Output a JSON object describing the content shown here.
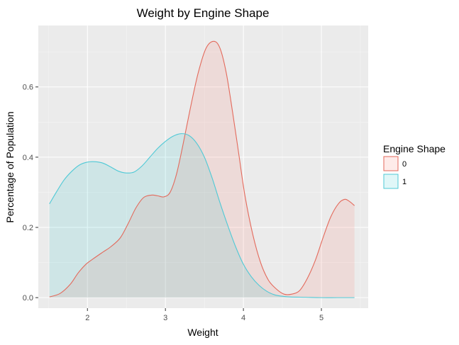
{
  "chart_data": {
    "type": "area",
    "title": "Weight by Engine Shape",
    "xlabel": "Weight",
    "ylabel": "Percentage of Population",
    "xlim": [
      1.37,
      5.6
    ],
    "ylim": [
      -0.03,
      0.775
    ],
    "x_ticks": [
      2,
      3,
      4,
      5
    ],
    "x_tick_labels": [
      "2",
      "3",
      "4",
      "5"
    ],
    "y_ticks": [
      0.0,
      0.2,
      0.4,
      0.6
    ],
    "y_tick_labels": [
      "0.0",
      "0.2",
      "0.4",
      "0.6"
    ],
    "grid": true,
    "legend": {
      "title": "Engine Shape",
      "position": "right"
    },
    "series": [
      {
        "name": "0",
        "color": "#E36A5C",
        "fill": "rgba(248,118,109,0.15)",
        "points": [
          [
            1.513,
            0.002
          ],
          [
            1.65,
            0.012
          ],
          [
            1.78,
            0.038
          ],
          [
            1.88,
            0.07
          ],
          [
            1.98,
            0.095
          ],
          [
            2.07,
            0.11
          ],
          [
            2.2,
            0.13
          ],
          [
            2.3,
            0.145
          ],
          [
            2.42,
            0.17
          ],
          [
            2.52,
            0.21
          ],
          [
            2.62,
            0.255
          ],
          [
            2.72,
            0.285
          ],
          [
            2.82,
            0.292
          ],
          [
            2.9,
            0.29
          ],
          [
            2.98,
            0.287
          ],
          [
            3.06,
            0.3
          ],
          [
            3.14,
            0.35
          ],
          [
            3.22,
            0.43
          ],
          [
            3.32,
            0.54
          ],
          [
            3.42,
            0.64
          ],
          [
            3.52,
            0.71
          ],
          [
            3.62,
            0.73
          ],
          [
            3.7,
            0.71
          ],
          [
            3.78,
            0.64
          ],
          [
            3.86,
            0.53
          ],
          [
            3.94,
            0.41
          ],
          [
            4.02,
            0.29
          ],
          [
            4.12,
            0.18
          ],
          [
            4.22,
            0.1
          ],
          [
            4.32,
            0.05
          ],
          [
            4.42,
            0.025
          ],
          [
            4.52,
            0.01
          ],
          [
            4.62,
            0.01
          ],
          [
            4.72,
            0.02
          ],
          [
            4.82,
            0.055
          ],
          [
            4.92,
            0.105
          ],
          [
            5.02,
            0.17
          ],
          [
            5.12,
            0.23
          ],
          [
            5.22,
            0.268
          ],
          [
            5.3,
            0.28
          ],
          [
            5.36,
            0.274
          ],
          [
            5.424,
            0.262
          ]
        ]
      },
      {
        "name": "1",
        "color": "#4FC9D6",
        "fill": "rgba(0,191,196,0.12)",
        "points": [
          [
            1.513,
            0.267
          ],
          [
            1.6,
            0.3
          ],
          [
            1.7,
            0.335
          ],
          [
            1.8,
            0.36
          ],
          [
            1.9,
            0.378
          ],
          [
            2.0,
            0.386
          ],
          [
            2.1,
            0.387
          ],
          [
            2.2,
            0.383
          ],
          [
            2.3,
            0.372
          ],
          [
            2.4,
            0.36
          ],
          [
            2.5,
            0.355
          ],
          [
            2.6,
            0.358
          ],
          [
            2.7,
            0.375
          ],
          [
            2.8,
            0.4
          ],
          [
            2.9,
            0.425
          ],
          [
            3.0,
            0.445
          ],
          [
            3.1,
            0.46
          ],
          [
            3.2,
            0.467
          ],
          [
            3.3,
            0.462
          ],
          [
            3.4,
            0.44
          ],
          [
            3.5,
            0.4
          ],
          [
            3.6,
            0.34
          ],
          [
            3.7,
            0.27
          ],
          [
            3.8,
            0.205
          ],
          [
            3.9,
            0.145
          ],
          [
            4.0,
            0.095
          ],
          [
            4.1,
            0.06
          ],
          [
            4.2,
            0.035
          ],
          [
            4.3,
            0.018
          ],
          [
            4.4,
            0.008
          ],
          [
            4.5,
            0.004
          ],
          [
            4.6,
            0.002
          ],
          [
            4.8,
            0.001
          ],
          [
            5.0,
            0.0
          ],
          [
            5.2,
            0.0
          ],
          [
            5.424,
            0.0
          ]
        ]
      }
    ]
  }
}
